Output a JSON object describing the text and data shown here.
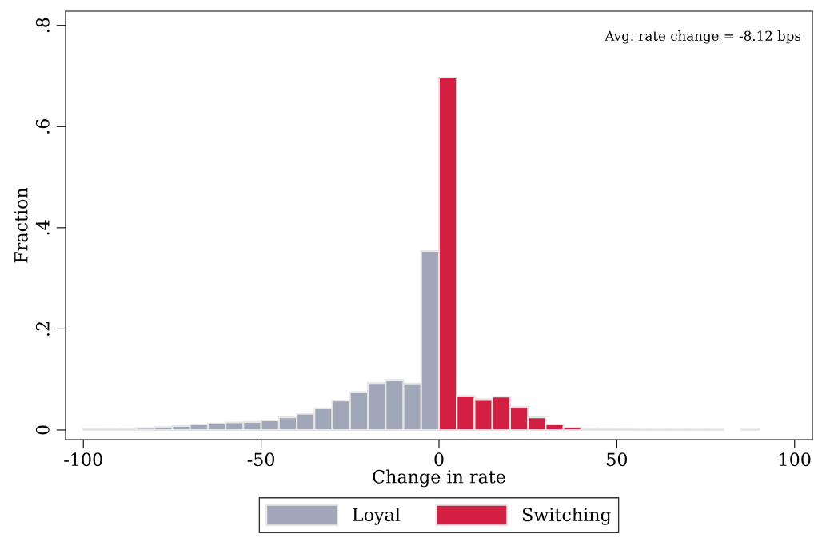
{
  "chart_data": {
    "type": "histogram",
    "xlabel": "Change in rate",
    "ylabel": "Fraction",
    "bins": [
      -100,
      -95,
      -90,
      -85,
      -80,
      -75,
      -70,
      -65,
      -60,
      -55,
      -50,
      -45,
      -40,
      -35,
      -30,
      -25,
      -20,
      -15,
      -10,
      -5,
      0,
      5,
      10,
      15,
      20,
      25,
      30,
      35,
      40,
      45,
      50,
      55,
      60,
      65,
      70,
      75,
      80,
      85,
      90
    ],
    "series": [
      {
        "name": "Loyal",
        "color": "#a0a7b8",
        "values": [
          0.003,
          0.002,
          0.003,
          0.004,
          0.006,
          0.008,
          0.011,
          0.013,
          0.015,
          0.016,
          0.019,
          0.025,
          0.032,
          0.043,
          0.058,
          0.075,
          0.093,
          0.099,
          0.092,
          0.354,
          null,
          null,
          null,
          null,
          null,
          null,
          null,
          null,
          null,
          null,
          null,
          null,
          null,
          null,
          null,
          null,
          null,
          null
        ]
      },
      {
        "name": "Switching",
        "color": "#d21f42",
        "values": [
          null,
          null,
          null,
          null,
          null,
          null,
          null,
          null,
          null,
          null,
          null,
          null,
          null,
          null,
          null,
          null,
          null,
          null,
          null,
          null,
          0.697,
          0.068,
          0.061,
          0.066,
          0.046,
          0.025,
          0.011,
          0.005,
          0.003,
          0.002,
          0.002,
          0.001,
          0.001,
          0.001,
          0.001,
          0.001,
          null,
          0.001
        ]
      }
    ],
    "xlim": [
      -105,
      105
    ],
    "xticks": [
      -100,
      -50,
      0,
      50,
      100
    ],
    "ylim": [
      -0.019,
      0.828
    ],
    "yticks": [
      0,
      {
        "value": 0.2,
        "label": ".2"
      },
      {
        "value": 0.4,
        "label": ".4"
      },
      {
        "value": 0.6,
        "label": ".6"
      },
      {
        "value": 0.8,
        "label": ".8"
      }
    ],
    "annotations": [
      "Avg. rate change = -8.12 bps"
    ],
    "legend": "bottom",
    "grid": false
  }
}
